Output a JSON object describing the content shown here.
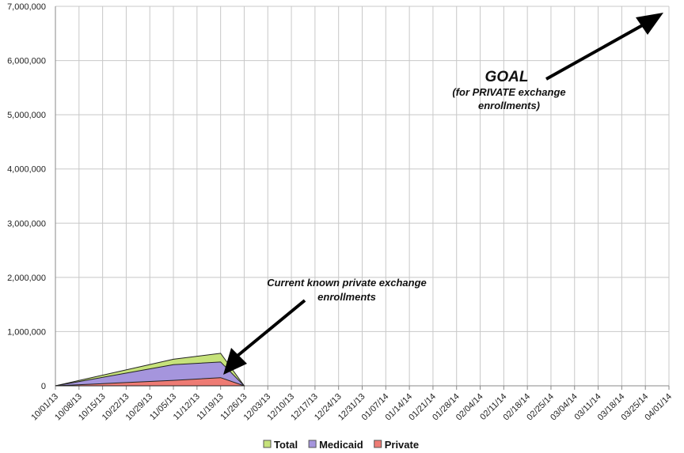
{
  "chart_data": {
    "type": "area",
    "title": "",
    "xlabel": "",
    "ylabel": "",
    "ylim": [
      0,
      7000000
    ],
    "grid": true,
    "legend_position": "bottom",
    "yticks": [
      "0",
      "1,000,000",
      "2,000,000",
      "3,000,000",
      "4,000,000",
      "5,000,000",
      "6,000,000",
      "7,000,000"
    ],
    "categories": [
      "10/01/13",
      "10/08/13",
      "10/15/13",
      "10/22/13",
      "10/29/13",
      "11/05/13",
      "11/12/13",
      "11/19/13",
      "11/26/13",
      "12/03/13",
      "12/10/13",
      "12/17/13",
      "12/24/13",
      "12/31/13",
      "01/07/14",
      "01/14/14",
      "01/21/14",
      "01/28/14",
      "02/04/14",
      "02/11/14",
      "02/18/14",
      "02/25/14",
      "03/04/14",
      "03/11/14",
      "03/18/14",
      "03/25/14",
      "04/01/14"
    ],
    "series": [
      {
        "name": "Total",
        "color": "#c6e27a",
        "points": [
          [
            "10/01/13",
            0
          ],
          [
            "11/05/13",
            490000
          ],
          [
            "11/19/13",
            600000
          ],
          [
            "11/26/13",
            0
          ]
        ]
      },
      {
        "name": "Medicaid",
        "color": "#a595dd",
        "points": [
          [
            "10/01/13",
            0
          ],
          [
            "11/05/13",
            390000
          ],
          [
            "11/19/13",
            440000
          ],
          [
            "11/26/13",
            0
          ]
        ]
      },
      {
        "name": "Private",
        "color": "#ee7b74",
        "points": [
          [
            "10/01/13",
            0
          ],
          [
            "11/05/13",
            100000
          ],
          [
            "11/19/13",
            150000
          ],
          [
            "11/26/13",
            0
          ]
        ]
      }
    ],
    "annotations": {
      "goal_title": "GOAL",
      "goal_line1": "(for PRIVATE exchange",
      "goal_line2": "enrollments)",
      "current_line1": "Current known private exchange",
      "current_line2": "enrollments"
    }
  }
}
